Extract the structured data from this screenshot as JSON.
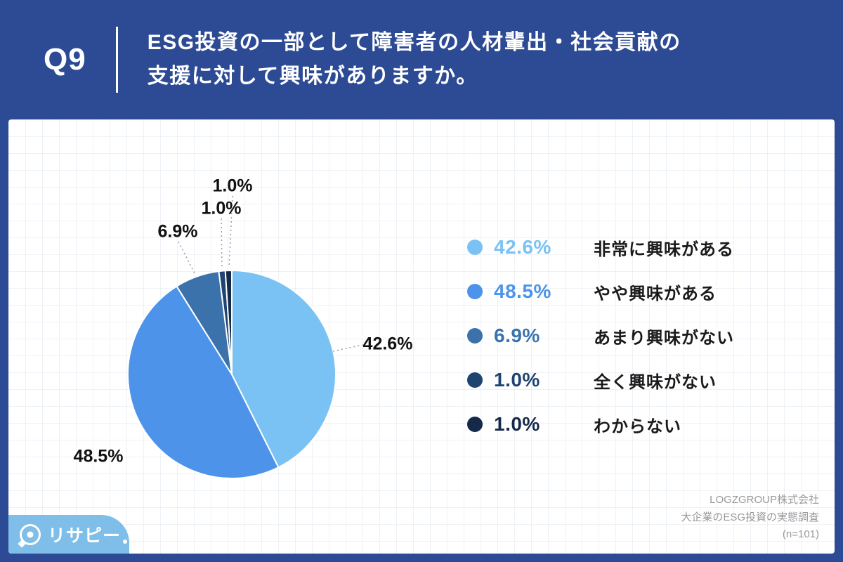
{
  "header": {
    "question_no": "Q9",
    "title_lines": [
      "ESG投資の一部として障害者の人材輩出・社会貢献の",
      "支援に対して興味がありますか。"
    ]
  },
  "chart_data": {
    "type": "pie",
    "title": "Q9 ESG投資の一部として障害者の人材輩出・社会貢献の支援に対して興味がありますか。",
    "labels": [
      "非常に興味がある",
      "やや興味がある",
      "あまり興味がない",
      "全く興味がない",
      "わからない"
    ],
    "values": [
      42.6,
      48.5,
      6.9,
      1.0,
      1.0
    ],
    "value_labels": [
      "42.6%",
      "48.5%",
      "6.9%",
      "1.0%",
      "1.0%"
    ],
    "colors": [
      "#79c2f3",
      "#4c93e9",
      "#3c72ac",
      "#1e4470",
      "#152949"
    ],
    "start_angle_deg": 0,
    "direction": "clockwise",
    "legend_position": "right",
    "legend": [
      {
        "percent": "42.6%",
        "label": "非常に興味がある"
      },
      {
        "percent": "48.5%",
        "label": "やや興味がある"
      },
      {
        "percent": "6.9%",
        "label": "あまり興味がない"
      },
      {
        "percent": "1.0%",
        "label": "全く興味がない"
      },
      {
        "percent": "1.0%",
        "label": "わからない"
      }
    ]
  },
  "footer": {
    "source_lines": [
      "LOGZGROUP株式会社",
      "大企業のESG投資の実態調査",
      "(n=101)"
    ],
    "logo_text": "リサピー"
  }
}
